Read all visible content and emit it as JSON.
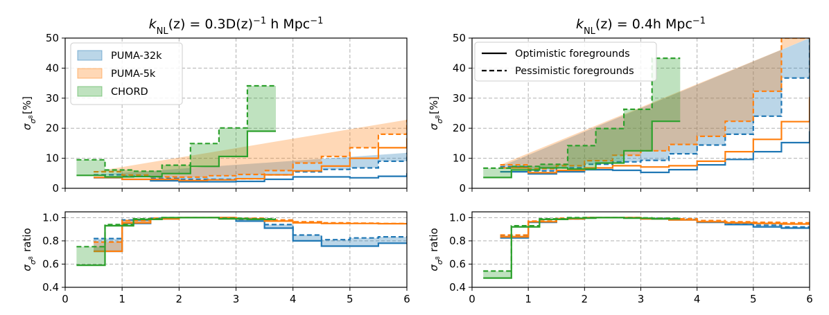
{
  "colors": {
    "PUMA-32k": "#1f77b4",
    "PUMA-5k": "#ff7f0e",
    "CHORD": "#2ca02c"
  },
  "chart_data": [
    {
      "type": "area",
      "title_parts": [
        "k",
        "NL",
        "(z) = 0.3D(z)",
        "−1",
        " h Mpc",
        "−1"
      ],
      "ylabel_parts": [
        "σ",
        "σ",
        "8",
        "[%]"
      ],
      "xlim": [
        0,
        6
      ],
      "ylim": [
        0,
        50
      ],
      "xticks": [
        "0",
        "1",
        "2",
        "3",
        "4",
        "5",
        "6"
      ],
      "yticks": [
        "0",
        "10",
        "20",
        "30",
        "40",
        "50"
      ],
      "grid": true,
      "legend": {
        "placement": "top-left",
        "entries": [
          "PUMA-32k",
          "PUMA-5k",
          "CHORD"
        ]
      },
      "series": [
        {
          "name": "PUMA-32k",
          "edges": [
            0.5,
            1.0,
            1.5,
            2.0,
            2.5,
            3.0,
            3.5,
            4.0,
            4.5,
            5.0,
            5.5,
            6.0
          ],
          "optimistic": [
            3.5,
            3.0,
            2.5,
            2.2,
            2.2,
            2.3,
            3.0,
            3.8,
            3.8,
            3.5,
            4.0,
            5.0
          ],
          "pessimistic": [
            4.5,
            4.0,
            3.3,
            3.0,
            3.0,
            3.2,
            4.5,
            5.5,
            6.3,
            6.8,
            9.0,
            11.8
          ]
        },
        {
          "name": "PUMA-5k",
          "edges": [
            0.5,
            1.0,
            1.5,
            2.0,
            2.5,
            3.0,
            3.5,
            4.0,
            4.5,
            5.0,
            5.5,
            6.0
          ],
          "optimistic": [
            3.6,
            3.0,
            3.0,
            2.6,
            2.8,
            3.2,
            4.5,
            5.8,
            7.4,
            10.0,
            13.5,
            16.7
          ],
          "pessimistic": [
            5.5,
            4.4,
            3.8,
            3.7,
            4.2,
            4.6,
            5.9,
            8.4,
            10.6,
            13.5,
            18.0,
            22.8
          ]
        },
        {
          "name": "CHORD",
          "edges": [
            0.2,
            0.7,
            1.2,
            1.7,
            2.2,
            2.7,
            3.2,
            3.7
          ],
          "optimistic": [
            4.3,
            3.8,
            3.9,
            4.9,
            7.3,
            10.6,
            19.0
          ],
          "pessimistic": [
            9.5,
            6.1,
            5.7,
            7.7,
            14.9,
            20.1,
            34.1
          ]
        }
      ]
    },
    {
      "type": "area",
      "title_parts": [
        "k",
        "NL",
        "(z) = 0.4h Mpc",
        "−1"
      ],
      "ylabel_parts": [
        "σ",
        "σ",
        "8",
        "[%]"
      ],
      "xlim": [
        0,
        6
      ],
      "ylim": [
        0,
        50
      ],
      "xticks": [
        "0",
        "1",
        "2",
        "3",
        "4",
        "5",
        "6"
      ],
      "yticks": [
        "0",
        "10",
        "20",
        "30",
        "40",
        "50"
      ],
      "grid": true,
      "legend": {
        "placement": "top-left",
        "entries": [
          "Optimistic foregrounds",
          "Pessimistic foregrounds"
        ]
      },
      "series": [
        {
          "name": "PUMA-32k",
          "edges": [
            0.5,
            1.0,
            1.5,
            2.0,
            2.5,
            3.0,
            3.5,
            4.0,
            4.5,
            5.0,
            5.5,
            6.0
          ],
          "optimistic": [
            5.5,
            4.8,
            5.5,
            6.2,
            6.0,
            5.3,
            6.2,
            7.8,
            9.6,
            12.2,
            15.2,
            19.0
          ],
          "pessimistic": [
            7.2,
            5.8,
            6.8,
            8.0,
            8.8,
            9.3,
            11.5,
            14.4,
            18.0,
            24.0,
            36.7,
            50.0
          ]
        },
        {
          "name": "PUMA-5k",
          "edges": [
            0.5,
            1.0,
            1.5,
            2.0,
            2.5,
            3.0,
            3.5,
            4.0,
            4.5,
            5.0,
            5.5,
            6.0
          ],
          "optimistic": [
            6.8,
            5.2,
            6.0,
            6.8,
            7.5,
            7.1,
            7.5,
            9.0,
            12.2,
            16.3,
            22.2,
            30.4
          ],
          "pessimistic": [
            7.8,
            6.5,
            7.5,
            9.2,
            11.0,
            12.5,
            14.6,
            17.3,
            22.3,
            32.3,
            50.0,
            50.0
          ]
        },
        {
          "name": "CHORD",
          "edges": [
            0.2,
            0.7,
            1.2,
            1.7,
            2.2,
            2.7,
            3.2,
            3.7
          ],
          "optimistic": [
            3.6,
            6.1,
            6.8,
            6.4,
            8.4,
            12.5,
            22.3
          ],
          "pessimistic": [
            6.7,
            7.3,
            8.0,
            14.2,
            19.9,
            26.3,
            43.3
          ]
        }
      ]
    },
    {
      "type": "area",
      "ylabel_parts": [
        "σ",
        "σ",
        "8",
        " ratio"
      ],
      "xlim": [
        0,
        6
      ],
      "ylim": [
        0.4,
        1.05
      ],
      "xticks": [
        "0",
        "1",
        "2",
        "3",
        "4",
        "5",
        "6"
      ],
      "yticks": [
        "0.4",
        "0.6",
        "0.8",
        "1.0"
      ],
      "grid": true,
      "series": [
        {
          "name": "PUMA-32k",
          "edges": [
            0.5,
            1.0,
            1.5,
            2.0,
            2.5,
            3.0,
            3.5,
            4.0,
            4.5,
            5.0,
            5.5,
            6.0
          ],
          "optimistic": [
            0.71,
            0.95,
            0.99,
            1.0,
            1.0,
            0.97,
            0.91,
            0.8,
            0.755,
            0.755,
            0.78
          ],
          "pessimistic": [
            0.82,
            0.98,
            0.995,
            1.0,
            1.0,
            0.985,
            0.94,
            0.85,
            0.81,
            0.825,
            0.835
          ]
        },
        {
          "name": "PUMA-5k",
          "edges": [
            0.5,
            1.0,
            1.5,
            2.0,
            2.5,
            3.0,
            3.5,
            4.0,
            4.5,
            5.0,
            5.5,
            6.0
          ],
          "optimistic": [
            0.71,
            0.955,
            0.99,
            1.0,
            1.0,
            0.99,
            0.97,
            0.955,
            0.95,
            0.95,
            0.948
          ],
          "pessimistic": [
            0.79,
            0.975,
            0.995,
            1.0,
            1.0,
            0.995,
            0.98,
            0.965,
            0.955,
            0.953,
            0.95
          ]
        },
        {
          "name": "CHORD",
          "edges": [
            0.2,
            0.7,
            1.2,
            1.7,
            2.2,
            2.7,
            3.2,
            3.7
          ],
          "optimistic": [
            0.59,
            0.93,
            0.985,
            1.0,
            1.0,
            0.99,
            0.985
          ],
          "pessimistic": [
            0.75,
            0.94,
            0.99,
            1.0,
            1.0,
            0.995,
            0.99
          ]
        }
      ]
    },
    {
      "type": "area",
      "ylabel_parts": [
        "σ",
        "σ",
        "8",
        " ratio"
      ],
      "xlim": [
        0,
        6
      ],
      "ylim": [
        0.4,
        1.05
      ],
      "xticks": [
        "0",
        "1",
        "2",
        "3",
        "4",
        "5",
        "6"
      ],
      "yticks": [
        "0.4",
        "0.6",
        "0.8",
        "1.0"
      ],
      "grid": true,
      "series": [
        {
          "name": "PUMA-32k",
          "edges": [
            0.5,
            1.0,
            1.5,
            2.0,
            2.5,
            3.0,
            3.5,
            4.0,
            4.5,
            5.0,
            5.5,
            6.0
          ],
          "optimistic": [
            0.825,
            0.96,
            0.99,
            1.0,
            1.0,
            0.99,
            0.98,
            0.96,
            0.94,
            0.92,
            0.91
          ],
          "pessimistic": [
            0.84,
            0.965,
            0.99,
            1.0,
            1.0,
            0.995,
            0.985,
            0.965,
            0.95,
            0.935,
            0.92
          ]
        },
        {
          "name": "PUMA-5k",
          "edges": [
            0.5,
            1.0,
            1.5,
            2.0,
            2.5,
            3.0,
            3.5,
            4.0,
            4.5,
            5.0,
            5.5,
            6.0
          ],
          "optimistic": [
            0.835,
            0.965,
            0.99,
            1.0,
            1.0,
            0.99,
            0.98,
            0.965,
            0.955,
            0.95,
            0.945
          ],
          "pessimistic": [
            0.85,
            0.97,
            0.995,
            1.0,
            1.0,
            0.995,
            0.99,
            0.975,
            0.965,
            0.96,
            0.955
          ]
        },
        {
          "name": "CHORD",
          "edges": [
            0.2,
            0.7,
            1.2,
            1.7,
            2.2,
            2.7,
            3.2,
            3.7
          ],
          "optimistic": [
            0.48,
            0.92,
            0.985,
            0.995,
            1.0,
            0.995,
            0.99
          ],
          "pessimistic": [
            0.54,
            0.93,
            0.99,
            1.0,
            1.0,
            0.998,
            0.995
          ]
        }
      ]
    }
  ]
}
